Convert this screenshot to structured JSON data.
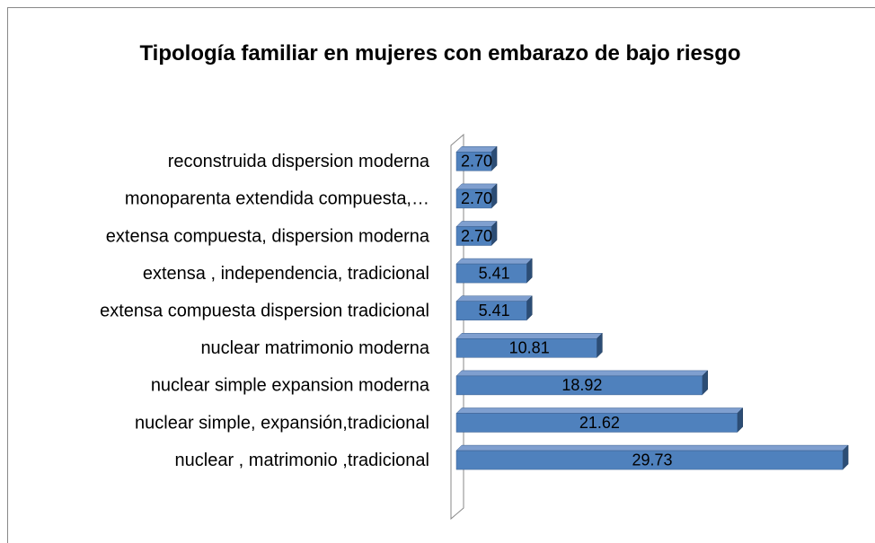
{
  "chart_data": {
    "type": "bar3d_horizontal",
    "title": "Tipología familiar en mujeres con embarazo de bajo riesgo",
    "categories": [
      "reconstruida dispersion moderna",
      "monoparenta extendida compuesta,…",
      "extensa compuesta, dispersion moderna",
      "extensa , independencia, tradicional",
      "extensa compuesta dispersion tradicional",
      "nuclear matrimonio moderna",
      "nuclear simple expansion moderna",
      "nuclear simple, expansión,tradicional",
      "nuclear , matrimonio ,tradicional"
    ],
    "values": [
      2.7,
      2.7,
      2.7,
      5.41,
      5.41,
      10.81,
      18.92,
      21.62,
      29.73
    ],
    "value_labels": [
      "2.70",
      "2.70",
      "2.70",
      "5.41",
      "5.41",
      "10.81",
      "18.92",
      "21.62",
      "29.73"
    ],
    "color": "#4f81bd",
    "xlim": [
      0,
      30
    ]
  }
}
